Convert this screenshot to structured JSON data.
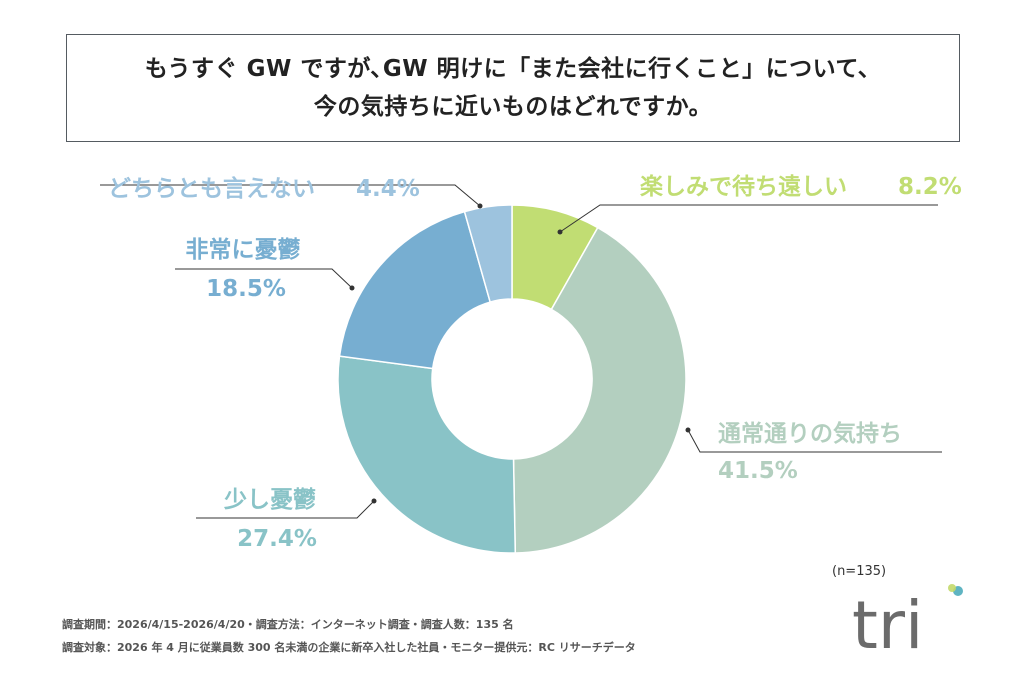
{
  "title": {
    "line1": "もうすぐ GW ですが､GW 明けに「また会社に行くこと」について、",
    "line2": "今の気持ちに近いものはどれですか。"
  },
  "chart_data": {
    "type": "pie",
    "donut": true,
    "unit": "%",
    "slices": [
      {
        "label": "楽しみで待ち遠しい",
        "value": 8.2,
        "value_text": "8.2%",
        "color": "#c1dd73"
      },
      {
        "label": "通常通りの気持ち",
        "value": 41.5,
        "value_text": "41.5%",
        "color": "#b3cfbf"
      },
      {
        "label": "少し憂鬱",
        "value": 27.4,
        "value_text": "27.4%",
        "color": "#89c3c7"
      },
      {
        "label": "非常に憂鬱",
        "value": 18.5,
        "value_text": "18.5%",
        "color": "#77aed1"
      },
      {
        "label": "どちらとも言えない",
        "value": 4.4,
        "value_text": "4.4%",
        "color": "#9dc3de"
      }
    ]
  },
  "sample": "(n=135)",
  "notes": {
    "line1": "調査期間：2026/4/15-2026/4/20・調査方法：インターネット調査・調査人数：135 名",
    "line2": "調査対象：2026 年 4 月に従業員数 300 名未満の企業に新卒入社した社員・モニター提供元：RC リサーチデータ"
  },
  "logo": {
    "text": "tri",
    "colors": [
      "#5fb4c2",
      "#c3d96a"
    ]
  }
}
